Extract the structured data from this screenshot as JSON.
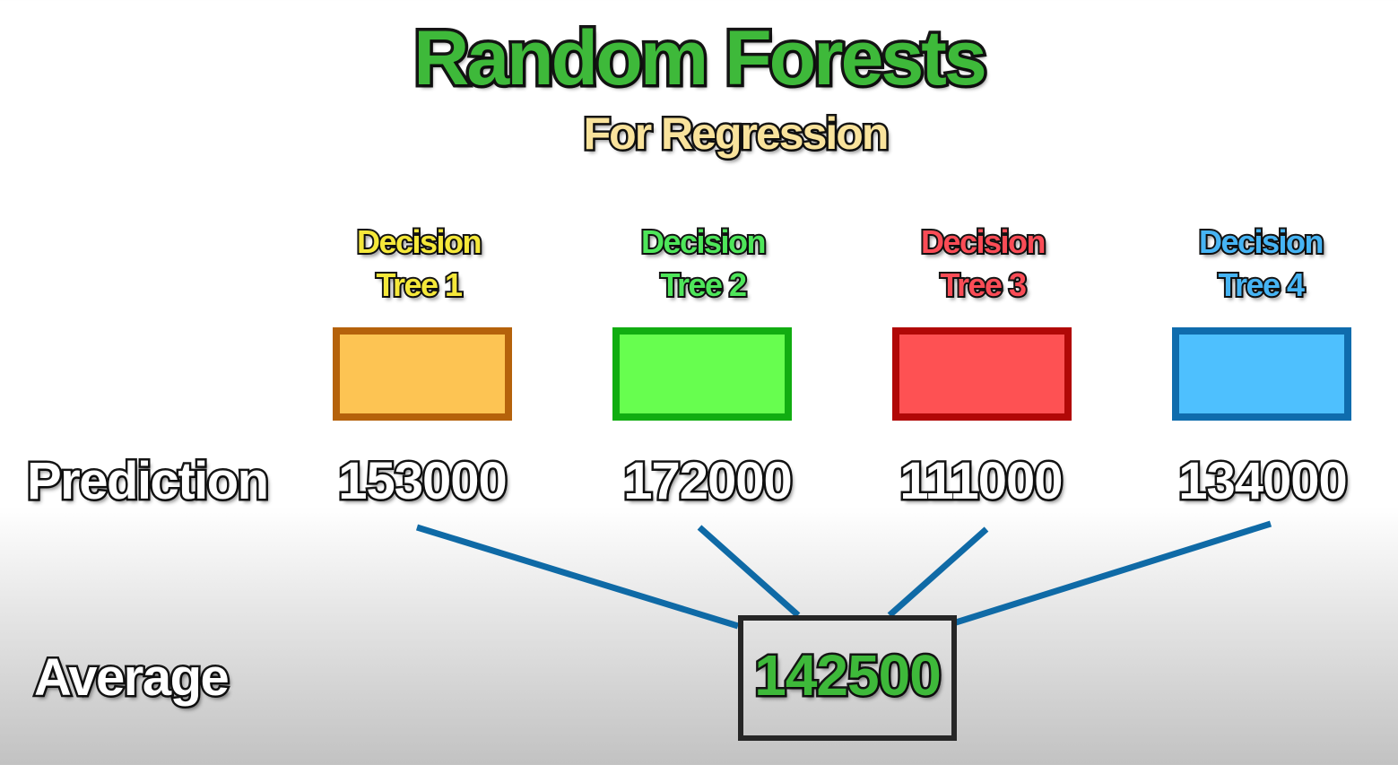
{
  "title": "Random Forests",
  "subtitle": "For Regression",
  "trees": [
    {
      "line1": "Decision",
      "line2": "Tree 1",
      "text_color": "#f5e83a",
      "fill": "#fdc453",
      "border": "#b5620b",
      "prediction": "153000"
    },
    {
      "line1": "Decision",
      "line2": "Tree 2",
      "text_color": "#4ee65a",
      "fill": "#67fe4f",
      "border": "#11ad11",
      "prediction": "172000"
    },
    {
      "line1": "Decision",
      "line2": "Tree 3",
      "text_color": "#fa4c56",
      "fill": "#fe5153",
      "border": "#b10807",
      "prediction": "111000"
    },
    {
      "line1": "Decision",
      "line2": "Tree 4",
      "text_color": "#46b4f4",
      "fill": "#4ec0fe",
      "border": "#0f6cad",
      "prediction": "134000"
    }
  ],
  "prediction_label": "Prediction",
  "average_label": "Average",
  "average_value": "142500",
  "connector_color": "#0f6aa6"
}
